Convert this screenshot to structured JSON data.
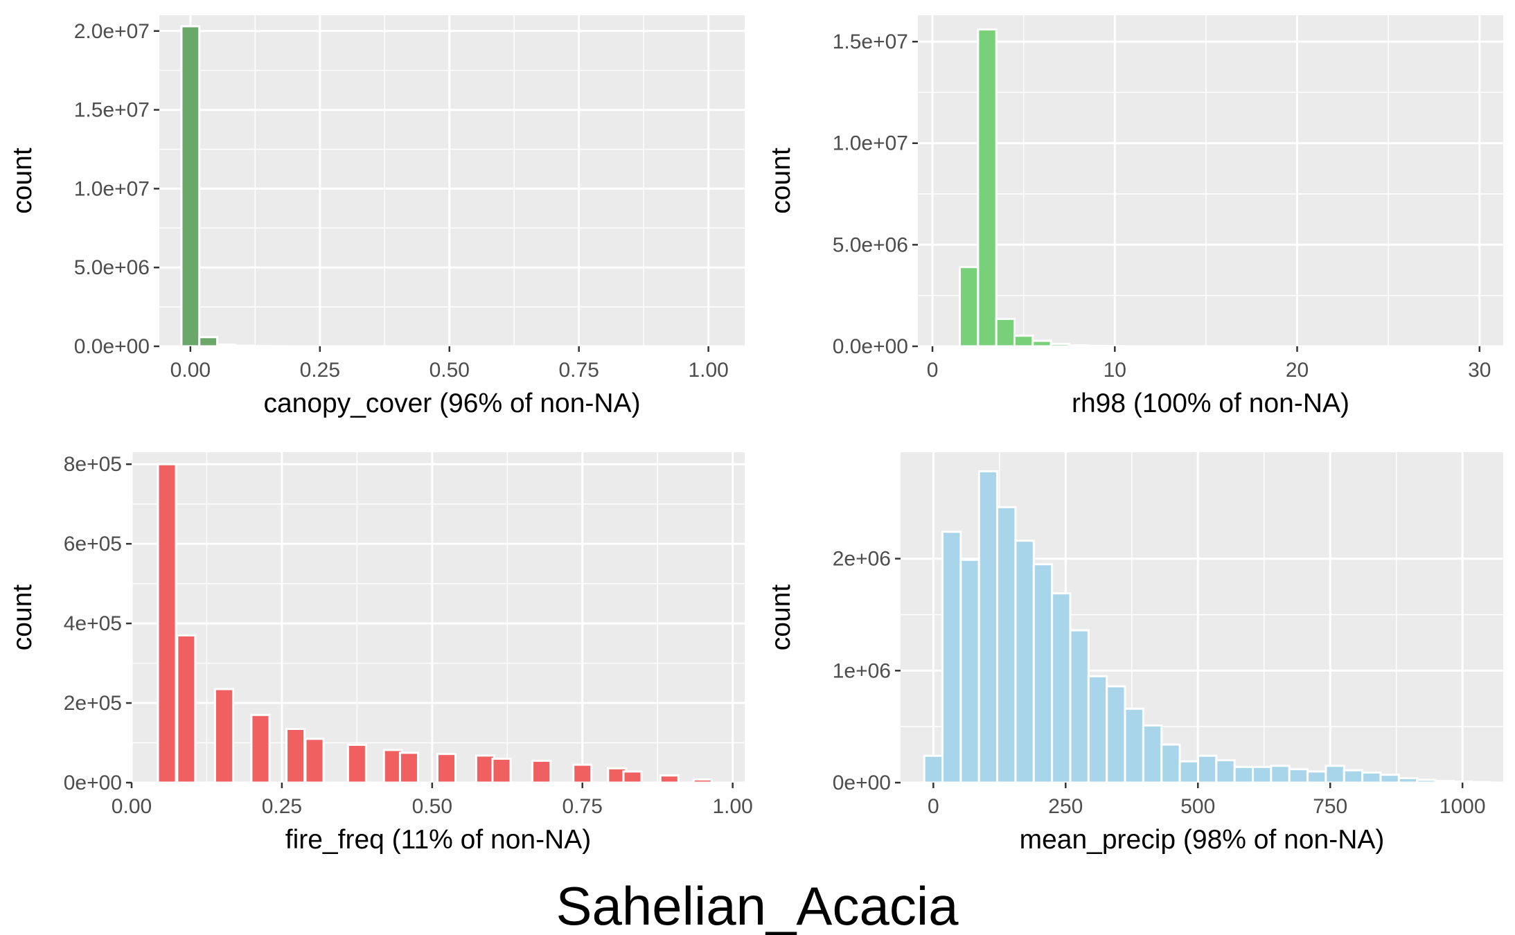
{
  "figure_title": "Sahelian_Acacia",
  "chart_data": [
    {
      "type": "bar",
      "xlabel": "canopy_cover (96% of non-NA)",
      "ylabel": "count",
      "xlim": [
        -0.06,
        1.07
      ],
      "ylim": [
        0,
        21000000
      ],
      "x_ticks": [
        0,
        0.25,
        0.5,
        0.75,
        1.0
      ],
      "x_tick_labels": [
        "0.00",
        "0.25",
        "0.50",
        "0.75",
        "1.00"
      ],
      "y_ticks": [
        0,
        5000000,
        10000000,
        15000000,
        20000000
      ],
      "y_tick_labels": [
        "0.0e+00",
        "5.0e+06",
        "1.0e+07",
        "1.5e+07",
        "2.0e+07"
      ],
      "fill": "#6aa86a",
      "bin_width": 0.0345,
      "bins": [
        {
          "x": 0.0,
          "count": 20300000
        },
        {
          "x": 0.0345,
          "count": 580000
        },
        {
          "x": 0.069,
          "count": 110000
        },
        {
          "x": 0.1035,
          "count": 40000
        },
        {
          "x": 0.138,
          "count": 15000
        },
        {
          "x": 0.1725,
          "count": 6000
        }
      ]
    },
    {
      "type": "bar",
      "xlabel": "rh98 (100% of non-NA)",
      "ylabel": "count",
      "xlim": [
        -0.8,
        31.3
      ],
      "ylim": [
        0,
        16300000
      ],
      "x_ticks": [
        0,
        10,
        20,
        30
      ],
      "x_tick_labels": [
        "0",
        "10",
        "20",
        "30"
      ],
      "y_ticks": [
        0,
        5000000,
        10000000,
        15000000
      ],
      "y_tick_labels": [
        "0.0e+00",
        "5.0e+06",
        "1.0e+07",
        "1.5e+07"
      ],
      "fill": "#78d078",
      "bin_width": 1.0,
      "bins": [
        {
          "x": 2,
          "count": 3900000
        },
        {
          "x": 3,
          "count": 15600000
        },
        {
          "x": 4,
          "count": 1350000
        },
        {
          "x": 5,
          "count": 520000
        },
        {
          "x": 6,
          "count": 270000
        },
        {
          "x": 7,
          "count": 120000
        },
        {
          "x": 8,
          "count": 50000
        },
        {
          "x": 9,
          "count": 20000
        },
        {
          "x": 10,
          "count": 8000
        }
      ]
    },
    {
      "type": "bar",
      "xlabel": "fire_freq (11% of non-NA)",
      "ylabel": "count",
      "xlim": [
        0.0,
        1.02
      ],
      "ylim": [
        0,
        830000
      ],
      "x_ticks": [
        0,
        0.25,
        0.5,
        0.75,
        1.0
      ],
      "x_tick_labels": [
        "0.00",
        "0.25",
        "0.50",
        "0.75",
        "1.00"
      ],
      "y_ticks": [
        0,
        200000,
        400000,
        600000,
        800000
      ],
      "y_tick_labels": [
        "0e+00",
        "2e+05",
        "4e+05",
        "6e+05",
        "8e+05"
      ],
      "fill": "#f06060",
      "bin_width": 0.03,
      "bins": [
        {
          "x": 0.0588,
          "count": 800000
        },
        {
          "x": 0.0909,
          "count": 370000
        },
        {
          "x": 0.1538,
          "count": 235000
        },
        {
          "x": 0.2143,
          "count": 170000
        },
        {
          "x": 0.2727,
          "count": 135000
        },
        {
          "x": 0.3043,
          "count": 110000
        },
        {
          "x": 0.375,
          "count": 95000
        },
        {
          "x": 0.4348,
          "count": 82000
        },
        {
          "x": 0.4615,
          "count": 75000
        },
        {
          "x": 0.5238,
          "count": 72000
        },
        {
          "x": 0.5882,
          "count": 68000
        },
        {
          "x": 0.6154,
          "count": 60000
        },
        {
          "x": 0.6818,
          "count": 55000
        },
        {
          "x": 0.75,
          "count": 45000
        },
        {
          "x": 0.8077,
          "count": 36000
        },
        {
          "x": 0.8333,
          "count": 28000
        },
        {
          "x": 0.8947,
          "count": 18000
        },
        {
          "x": 0.95,
          "count": 8000
        }
      ]
    },
    {
      "type": "bar",
      "xlabel": "mean_precip (98% of non-NA)",
      "ylabel": "count",
      "xlim": [
        -62,
        1077
      ],
      "ylim": [
        0,
        2950000
      ],
      "x_ticks": [
        0,
        250,
        500,
        750,
        1000
      ],
      "x_tick_labels": [
        "0",
        "250",
        "500",
        "750",
        "1000"
      ],
      "y_ticks": [
        0,
        1000000,
        2000000
      ],
      "y_tick_labels": [
        "0e+00",
        "1e+06",
        "2e+06"
      ],
      "fill": "#a8d5ea",
      "bin_width": 34.5,
      "bins": [
        {
          "x": 0.0,
          "count": 240000
        },
        {
          "x": 34.5,
          "count": 2240000
        },
        {
          "x": 69.0,
          "count": 1990000
        },
        {
          "x": 103.5,
          "count": 2780000
        },
        {
          "x": 138.0,
          "count": 2460000
        },
        {
          "x": 172.5,
          "count": 2160000
        },
        {
          "x": 207.0,
          "count": 1950000
        },
        {
          "x": 241.5,
          "count": 1690000
        },
        {
          "x": 276.0,
          "count": 1360000
        },
        {
          "x": 310.5,
          "count": 950000
        },
        {
          "x": 345.0,
          "count": 860000
        },
        {
          "x": 379.5,
          "count": 660000
        },
        {
          "x": 414.0,
          "count": 510000
        },
        {
          "x": 448.5,
          "count": 340000
        },
        {
          "x": 483.0,
          "count": 190000
        },
        {
          "x": 517.5,
          "count": 240000
        },
        {
          "x": 552.0,
          "count": 200000
        },
        {
          "x": 586.5,
          "count": 140000
        },
        {
          "x": 621.0,
          "count": 140000
        },
        {
          "x": 655.5,
          "count": 150000
        },
        {
          "x": 690.0,
          "count": 120000
        },
        {
          "x": 724.5,
          "count": 100000
        },
        {
          "x": 759.0,
          "count": 150000
        },
        {
          "x": 793.5,
          "count": 110000
        },
        {
          "x": 828.0,
          "count": 90000
        },
        {
          "x": 862.5,
          "count": 70000
        },
        {
          "x": 897.0,
          "count": 40000
        },
        {
          "x": 931.5,
          "count": 25000
        },
        {
          "x": 966.0,
          "count": 15000
        },
        {
          "x": 1000.5,
          "count": 8000
        },
        {
          "x": 1035.0,
          "count": 4000
        }
      ]
    }
  ]
}
